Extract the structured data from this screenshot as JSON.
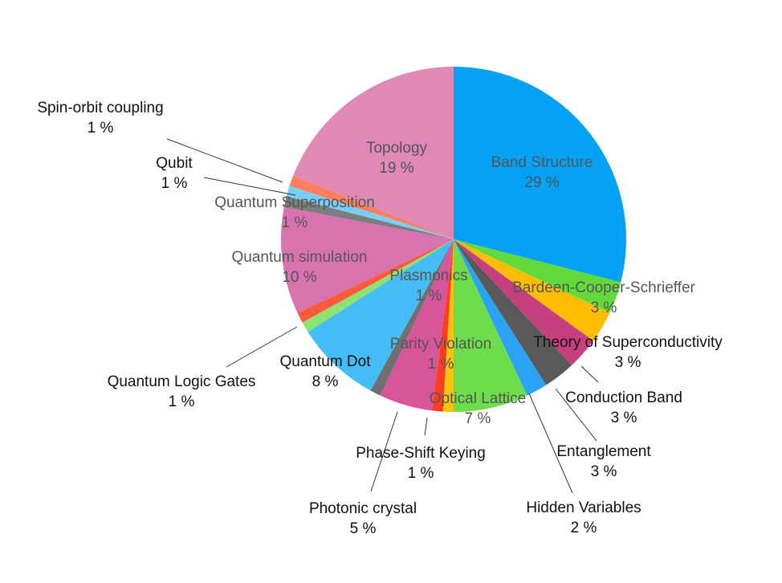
{
  "chart_data": {
    "type": "pie",
    "title": "",
    "start_angle_deg": 0,
    "direction": "clockwise",
    "series": [
      {
        "name": "Band Structure",
        "value": 29,
        "label": "29 %",
        "color": "#03A2F5"
      },
      {
        "name": "Bardeen-Cooper-Schrieffer",
        "value": 3,
        "label": "3 %",
        "color": "#63DA3B"
      },
      {
        "name": "Theory of Superconductivity",
        "value": 3,
        "label": "3 %",
        "color": "#FEBD00"
      },
      {
        "name": "Conduction Band",
        "value": 3,
        "label": "3 %",
        "color": "#C6407F"
      },
      {
        "name": "Entanglement",
        "value": 3,
        "label": "3 %",
        "color": "#595959"
      },
      {
        "name": "Hidden Variables",
        "value": 2,
        "label": "2 %",
        "color": "#2AA3F4"
      },
      {
        "name": "Optical Lattice",
        "value": 7,
        "label": "7 %",
        "color": "#6DDD4B"
      },
      {
        "name": "Parity Violation",
        "value": 1,
        "label": "1 %",
        "color": "#F6C40D"
      },
      {
        "name": "Phase-Shift Keying",
        "value": 1,
        "label": "1 %",
        "color": "#FF3D25"
      },
      {
        "name": "Photonic crystal",
        "value": 5,
        "label": "5 %",
        "color": "#D6559B"
      },
      {
        "name": "Plasmonics",
        "value": 1,
        "label": "1 %",
        "color": "#707070"
      },
      {
        "name": "Quantum Dot",
        "value": 8,
        "label": "8 %",
        "color": "#44BDF7"
      },
      {
        "name": "Quantum Logic Gates",
        "value": 1,
        "label": "1 %",
        "color": "#8CE372"
      },
      {
        "name": "Phase-Shift",
        "hidden_label": true,
        "value": 1,
        "label": "",
        "color": "#FF5A3D"
      },
      {
        "name": "Quantum simulation",
        "value": 10,
        "label": "10 %",
        "color": "#D873B0"
      },
      {
        "name": "Quantum Superposition",
        "value": 1,
        "label": "1 %",
        "color": "#7D7D7D"
      },
      {
        "name": "Qubit",
        "value": 1,
        "label": "1 %",
        "color": "#77CFF8"
      },
      {
        "name": "Spin-orbit coupling",
        "value": 1,
        "label": "1 %",
        "color": "#FF7F5E"
      },
      {
        "name": "Topology",
        "value": 19,
        "label": "19 %",
        "color": "#E088B6"
      }
    ]
  }
}
